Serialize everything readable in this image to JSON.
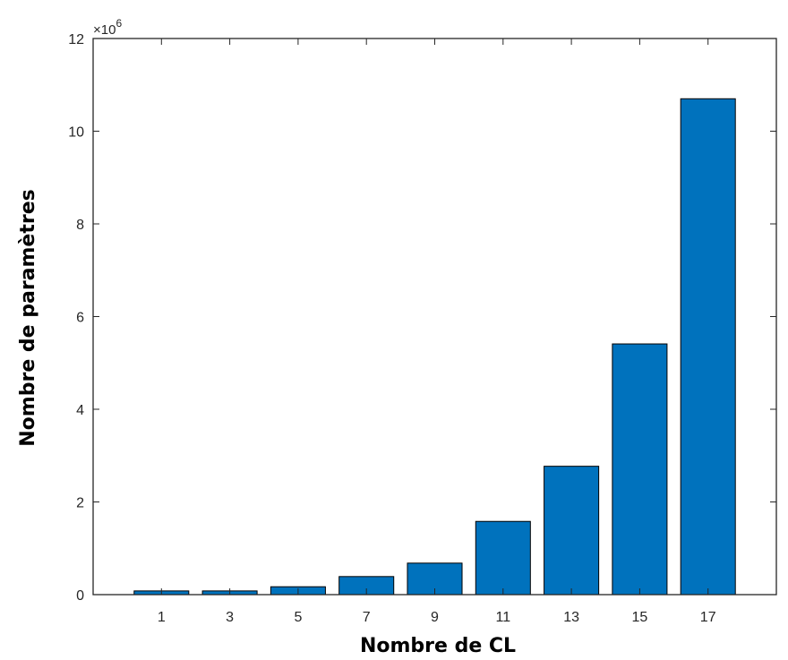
{
  "chart_data": {
    "type": "bar",
    "title": "",
    "xlabel": "Nombre de CL",
    "ylabel": "Nombre de paramètres",
    "categories": [
      "1",
      "3",
      "5",
      "7",
      "9",
      "11",
      "13",
      "15",
      "17"
    ],
    "values": [
      80000,
      80000,
      170000,
      390000,
      680000,
      1580000,
      2770000,
      5410000,
      10700000
    ],
    "ylim": [
      0,
      12000000
    ],
    "yticks": [
      0,
      2,
      4,
      6,
      8,
      10,
      12
    ],
    "y_exponent_label": "×10",
    "y_exponent_power": "6",
    "grid": false,
    "bar_color": "#0072bd",
    "bar_edge_color": "#000000"
  }
}
